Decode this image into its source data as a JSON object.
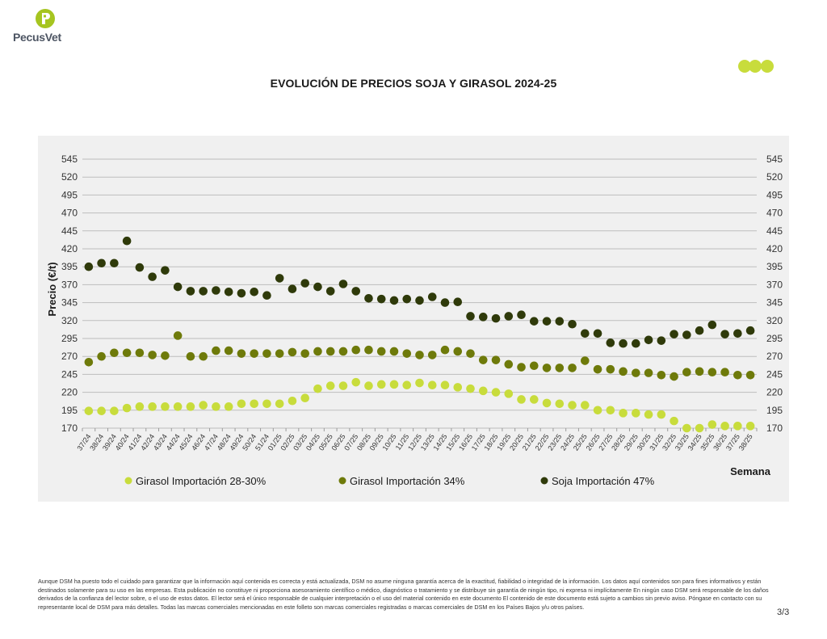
{
  "brand": {
    "name": "PecusVet",
    "accent": "#a6c520",
    "text_color": "#4d5563"
  },
  "page": {
    "number": "3/3"
  },
  "footer": {
    "disclaimer": "Aunque DSM ha puesto todo el cuidado para garantizar que la información aquí contenida es correcta y está actualizada, DSM no asume ninguna garantía acerca de la exactitud, fiabilidad o integridad de la información. Los datos aquí contenidos son para fines informativos y están destinados solamente para su uso en las empresas. Esta publicación no constituye ni proporciona asesoramiento científico o médico, diagnóstico o tratamiento y se distribuye sin garantía de ningún tipo, ni expresa ni implícitamente En ningún caso DSM será responsable de los daños derivados de la confianza del lector sobre, o el uso de estos datos. El lector será el único responsable de cualquier interpretación o el uso del material contenido en este documento El contenido de este documento está sujeto a cambios sin previo aviso. Póngase en contacto con su representante local de DSM para más detalles. Todas las marcas comerciales mencionadas en este folleto son marcas comerciales registradas o marcas comerciales de DSM en los Países Bajos y/u otros países."
  },
  "chart_data": {
    "type": "scatter",
    "title": "EVOLUCIÓN DE PRECIOS SOJA Y GIRASOL 2024-25",
    "xlabel": "Semana",
    "ylabel": "Precio (€/t)",
    "ylim": [
      170,
      545
    ],
    "yticks": [
      170,
      195,
      220,
      245,
      270,
      295,
      320,
      345,
      370,
      395,
      420,
      445,
      470,
      495,
      520,
      545
    ],
    "grid": true,
    "legend_position": "bottom",
    "categories": [
      "37/24",
      "38/24",
      "39/24",
      "40/24",
      "41/24",
      "42/24",
      "43/24",
      "44/24",
      "45/24",
      "46/24",
      "47/24",
      "48/24",
      "49/24",
      "50/24",
      "51/24",
      "01/25",
      "02/25",
      "03/25",
      "04/25",
      "05/25",
      "06/25",
      "07/25",
      "08/25",
      "09/25",
      "10/25",
      "11/25",
      "12/25",
      "13/25",
      "14/25",
      "15/25",
      "16/25",
      "17/25",
      "18/25",
      "19/25",
      "20/25",
      "21/25",
      "22/25",
      "23/25",
      "24/25",
      "25/25",
      "26/25",
      "27/25",
      "28/25",
      "29/25",
      "30/25",
      "31/25",
      "32/25",
      "33/25",
      "34/25",
      "35/25",
      "36/25",
      "37/25",
      "38/25"
    ],
    "series": [
      {
        "name": "Girasol Importación 28-30%",
        "color": "#c8dc3c",
        "values": [
          194,
          194,
          194,
          198,
          200,
          200,
          200,
          200,
          200,
          202,
          200,
          200,
          204,
          204,
          204,
          204,
          208,
          212,
          225,
          229,
          229,
          234,
          229,
          231,
          231,
          230,
          233,
          230,
          230,
          227,
          225,
          222,
          220,
          218,
          210,
          210,
          205,
          204,
          202,
          202,
          195,
          195,
          191,
          191,
          189,
          189,
          180,
          170,
          170,
          175,
          173,
          173,
          173
        ]
      },
      {
        "name": "Girasol Importación 34%",
        "color": "#6e7a0a",
        "values": [
          262,
          270,
          275,
          275,
          275,
          272,
          271,
          299,
          270,
          270,
          278,
          278,
          274,
          274,
          274,
          274,
          276,
          274,
          277,
          277,
          277,
          279,
          279,
          277,
          277,
          274,
          272,
          272,
          279,
          277,
          274,
          265,
          265,
          259,
          255,
          257,
          254,
          254,
          254,
          264,
          252,
          252,
          249,
          247,
          247,
          244,
          242,
          248,
          249,
          248,
          248,
          244,
          244
        ]
      },
      {
        "name": "Soja Importación 47%",
        "color": "#2f3a0a",
        "values": [
          395,
          400,
          400,
          431,
          394,
          381,
          390,
          367,
          361,
          361,
          362,
          360,
          358,
          360,
          355,
          379,
          364,
          372,
          367,
          361,
          371,
          361,
          351,
          350,
          348,
          350,
          348,
          353,
          345,
          346,
          326,
          325,
          323,
          326,
          328,
          319,
          319,
          319,
          315,
          302,
          302,
          289,
          288,
          288,
          293,
          292,
          301,
          300,
          306,
          314,
          301,
          302,
          306
        ]
      }
    ]
  }
}
